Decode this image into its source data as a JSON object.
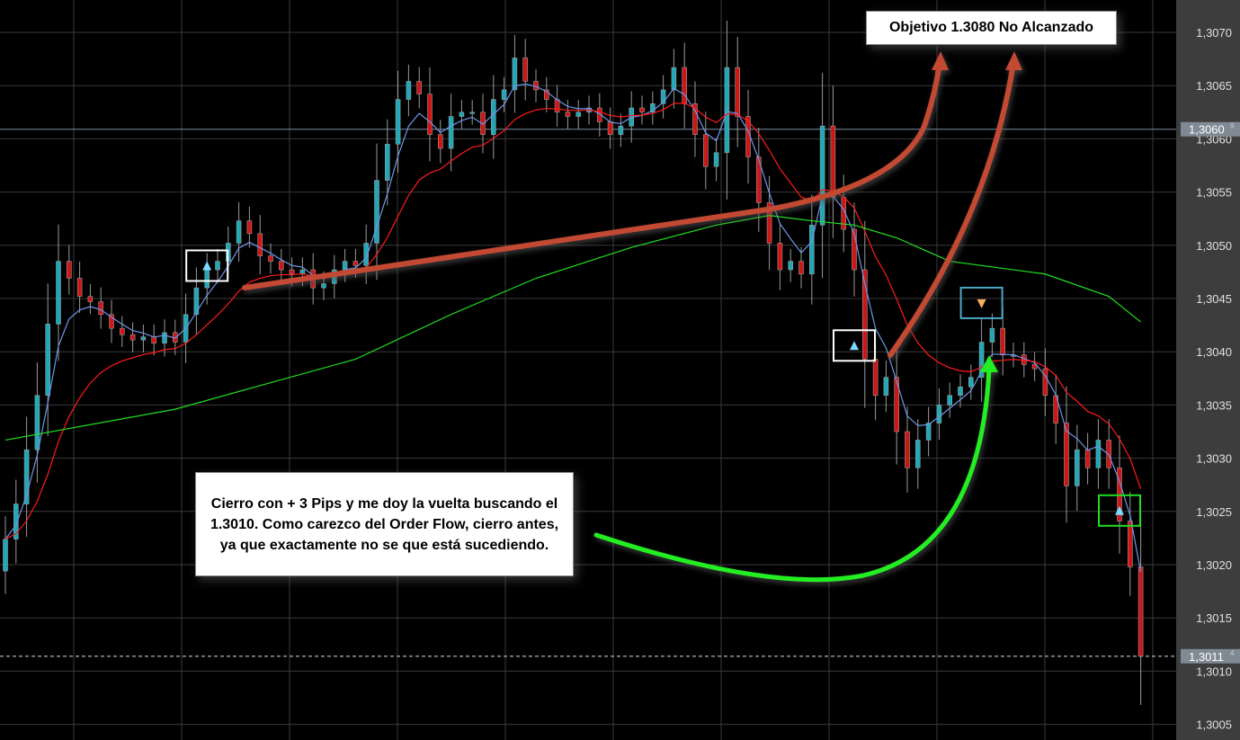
{
  "chart_data": {
    "type": "candlestick",
    "title": "",
    "xlabel": "",
    "ylabel": "",
    "ylim": [
      1.30035,
      1.30745
    ],
    "y_ticks": [
      "1,3070",
      "1,3065",
      "1,3060",
      "1,3055",
      "1,3050",
      "1,3045",
      "1,3040",
      "1,3035",
      "1,3030",
      "1,3025",
      "1,3020",
      "1,3015",
      "1,3010",
      "1,3005"
    ],
    "y_tick_values": [
      1.307,
      1.3065,
      1.306,
      1.3055,
      1.305,
      1.3045,
      1.304,
      1.3035,
      1.303,
      1.3025,
      1.302,
      1.3015,
      1.301,
      1.3005
    ],
    "grid": true,
    "closes": [
      1.30224,
      1.30257,
      1.30308,
      1.30359,
      1.30426,
      1.30485,
      1.30469,
      1.30452,
      1.30447,
      1.30435,
      1.30422,
      1.30416,
      1.30411,
      1.30414,
      1.30408,
      1.30418,
      1.30409,
      1.30435,
      1.3046,
      1.30477,
      1.30485,
      1.30502,
      1.30523,
      1.30511,
      1.3049,
      1.30485,
      1.30477,
      1.30473,
      1.30477,
      1.3046,
      1.30464,
      1.30477,
      1.30485,
      1.30481,
      1.30502,
      1.30561,
      1.30595,
      1.30637,
      1.30654,
      1.30642,
      1.30604,
      1.30591,
      1.30621,
      1.30625,
      1.30625,
      1.30604,
      1.30637,
      1.30646,
      1.30676,
      1.30654,
      1.30646,
      1.30637,
      1.30625,
      1.30621,
      1.30625,
      1.30629,
      1.30616,
      1.30604,
      1.30612,
      1.30629,
      1.30625,
      1.30633,
      1.30646,
      1.30667,
      1.30633,
      1.30604,
      1.30574,
      1.30587,
      1.30667,
      1.30621,
      1.30583,
      1.3054,
      1.30502,
      1.30477,
      1.30485,
      1.30473,
      1.30519,
      1.30612,
      1.30545,
      1.30515,
      1.30477,
      1.30393,
      1.30359,
      1.30376,
      1.30325,
      1.30291,
      1.30317,
      1.30333,
      1.3035,
      1.30359,
      1.30367,
      1.30376,
      1.30409,
      1.30422,
      1.30397,
      1.30397,
      1.30388,
      1.30384,
      1.30359,
      1.30333,
      1.30274,
      1.30308,
      1.30291,
      1.30317,
      1.30291,
      1.30241,
      1.30198,
      1.30114
    ],
    "indicators": [
      {
        "type": "ema",
        "period": 4,
        "color": "#6f96e8"
      },
      {
        "type": "ema",
        "period": 12,
        "color": "#ff1a1a"
      },
      {
        "type": "line",
        "color": "#22e022",
        "points": [
          [
            0,
            1.30317
          ],
          [
            16,
            1.30346
          ],
          [
            25,
            1.30371
          ],
          [
            33,
            1.30393
          ],
          [
            42,
            1.30435
          ],
          [
            50,
            1.30469
          ],
          [
            59,
            1.30498
          ],
          [
            67,
            1.30519
          ],
          [
            72,
            1.30528
          ],
          [
            76,
            1.30523
          ],
          [
            80,
            1.30519
          ],
          [
            84,
            1.30507
          ],
          [
            89,
            1.30485
          ],
          [
            98,
            1.30473
          ],
          [
            104,
            1.30452
          ],
          [
            107,
            1.30428
          ]
        ]
      }
    ],
    "price_lines": [
      {
        "value": 1.30609,
        "label": "1,3060",
        "suffix": "9",
        "style": "solid"
      },
      {
        "value": 1.30114,
        "label": "1,3011",
        "suffix": "4",
        "style": "dashed"
      }
    ],
    "signals": [
      {
        "candle": 19,
        "price": 1.3048,
        "type": "up",
        "box_color": "#ffffff"
      },
      {
        "candle": 80,
        "price": 1.30405,
        "type": "up",
        "box_color": "#ffffff"
      },
      {
        "candle": 92,
        "price": 1.30445,
        "type": "down",
        "box_color": "#4aa8c8"
      },
      {
        "candle": 105,
        "price": 1.3025,
        "type": "up",
        "box_color": "#22dd22"
      }
    ],
    "colors": {
      "bull": "#1fa9b8",
      "bear": "#d01515",
      "wick": "#9a9a9a",
      "background": "#000000",
      "grid": "#3a3a3a",
      "axis_panel": "#3d3d3d"
    }
  },
  "annotations": {
    "target_note": "Objetivo 1.3080 No Alcanzado",
    "close_note": "Cierro con + 3 Pips y me doy la vuelta buscando el 1.3010. Como carezco del Order Flow, cierro antes, ya que exactamente no se que está sucediendo."
  }
}
